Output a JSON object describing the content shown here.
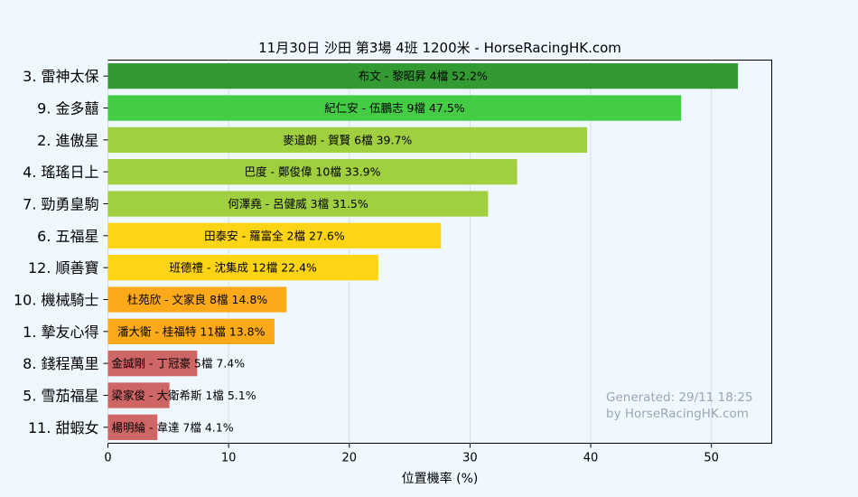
{
  "chart_data": {
    "type": "bar",
    "orientation": "horizontal",
    "title": "11月30日  沙田  第3場  4班  1200米 - HorseRacingHK.com",
    "xlabel": "位置機率 (%)",
    "ylabel": "",
    "xlim": [
      0,
      55
    ],
    "xticks": [
      0,
      10,
      20,
      30,
      40,
      50
    ],
    "grid": "vertical",
    "categories": [
      "3. 雷神太保",
      "9. 金多囍",
      "2. 進傲星",
      "4. 瑤瑤日上",
      "7. 勁勇皇駒",
      "6. 五福星",
      "12. 順善寶",
      "10. 機械騎士",
      "1. 摯友心得",
      "8. 錢程萬里",
      "5. 雪茄福星",
      "11. 甜蝦女"
    ],
    "values": [
      52.2,
      47.5,
      39.7,
      33.9,
      31.5,
      27.6,
      22.4,
      14.8,
      13.8,
      7.4,
      5.1,
      4.1
    ],
    "labels": [
      "布文 - 黎昭昇 4檔  52.2%",
      "紀仁安 - 伍鵬志 9檔  47.5%",
      "麥道朗 - 賀賢 6檔  39.7%",
      "巴度 - 鄭俊偉 10檔  33.9%",
      "何澤堯 - 呂健威 3檔  31.5%",
      "田泰安 - 羅富全 2檔  27.6%",
      "班德禮 - 沈集成 12檔  22.4%",
      "杜苑欣 - 文家良 8檔  14.8%",
      "潘大衛 - 桂福特 11檔  13.8%",
      "金誠剛 - 丁冠豪 5檔  7.4%",
      "梁家俊 - 大衛希斯 1檔  5.1%",
      "楊明綸 - 韋達 7檔  4.1%"
    ],
    "colors": [
      "#339933",
      "#44cc44",
      "#a0cf40",
      "#a0cf40",
      "#a0cf40",
      "#fdd515",
      "#fdd515",
      "#fdaa1a",
      "#fdaa1a",
      "#cf6666",
      "#cf6666",
      "#cf6666"
    ]
  },
  "watermark": {
    "line1": "Generated: 29/11 18:25",
    "line2": "by HorseRacingHK.com"
  }
}
